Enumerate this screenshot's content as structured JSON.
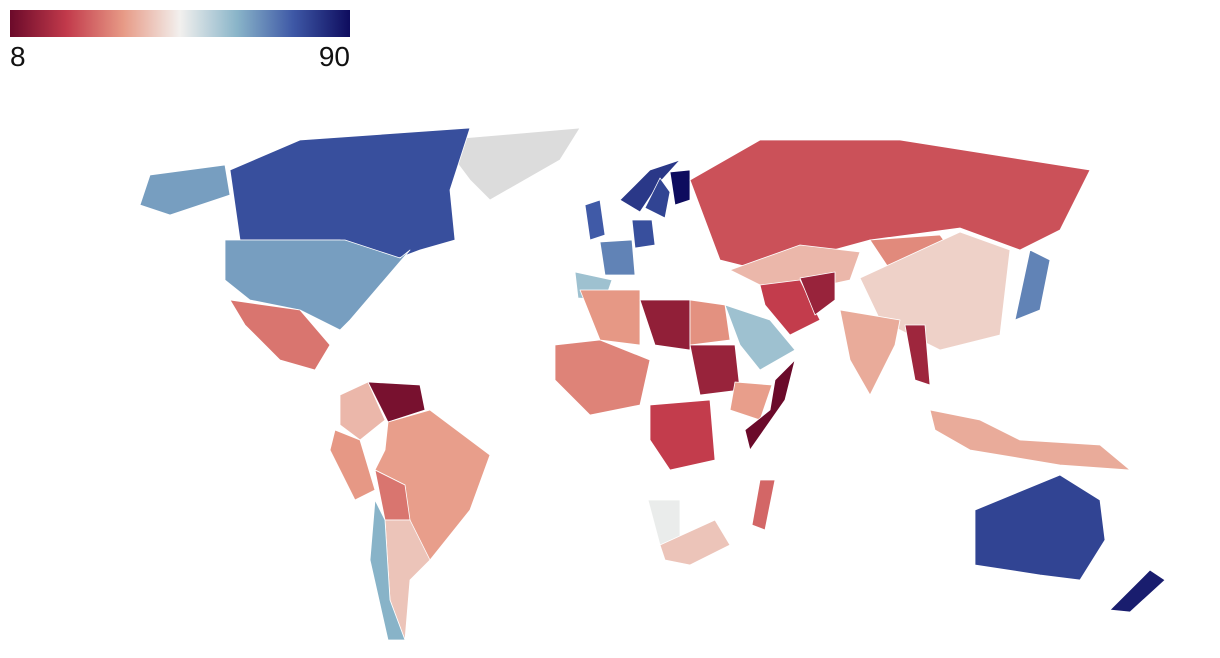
{
  "legend": {
    "range": [
      8,
      90
    ],
    "colormap": [
      "#6b0a2a",
      "#c23a4b",
      "#e79a86",
      "#f2f0ee",
      "#8ab5c9",
      "#3e58a6",
      "#0e0c5e"
    ]
  },
  "missing_color": "#dcdcdc",
  "values": [
    78,
    66,
    30,
    40,
    10,
    35,
    36,
    30,
    42,
    63,
    76,
    70,
    60,
    78,
    82,
    80,
    90,
    25,
    40,
    33,
    44,
    38,
    22,
    15,
    60,
    35,
    14,
    34,
    15,
    36,
    8,
    22,
    50,
    42,
    28,
    32,
    38,
    70,
    16,
    80,
    87
  ]
}
